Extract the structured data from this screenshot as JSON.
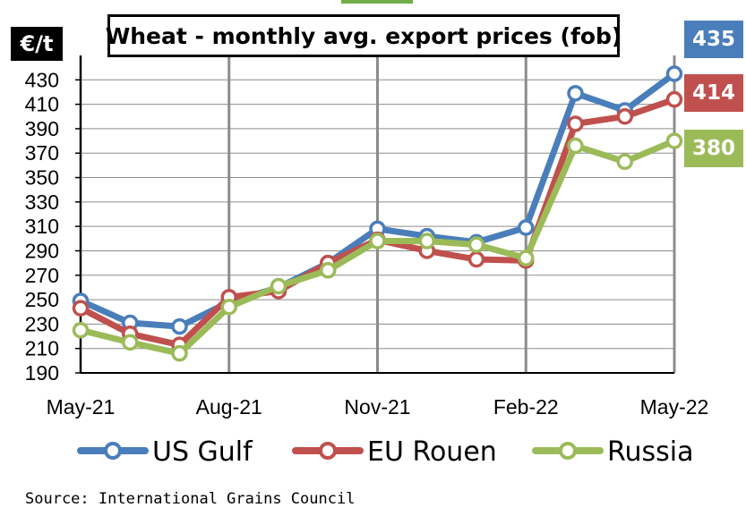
{
  "unit_label": "€/t",
  "source": "Source: International Grains Council",
  "chart_data": {
    "type": "line",
    "title": "Wheat - monthly avg. export prices (fob)",
    "ylabel": "€/t",
    "ylim": [
      190,
      450
    ],
    "yticks": [
      190,
      210,
      230,
      250,
      270,
      290,
      310,
      330,
      350,
      370,
      390,
      410,
      430
    ],
    "ytick_labels": [
      "190",
      "210",
      "230",
      "250",
      "270",
      "290",
      "310",
      "330",
      "350",
      "370",
      "390",
      "410",
      "430"
    ],
    "x_categories": [
      "May-21",
      "Jun-21",
      "Jul-21",
      "Aug-21",
      "Sep-21",
      "Oct-21",
      "Nov-21",
      "Dec-21",
      "Jan-22",
      "Feb-22",
      "Mar-22",
      "Apr-22",
      "May-22"
    ],
    "x_tick_labels": [
      "May-21",
      "Aug-21",
      "Nov-21",
      "Feb-22",
      "May-22"
    ],
    "grid": true,
    "legend_position": "bottom",
    "series": [
      {
        "name": "US Gulf",
        "color": "#4a7ebb",
        "values": [
          249,
          231,
          228,
          248,
          260,
          280,
          308,
          302,
          297,
          309,
          419,
          405,
          435
        ],
        "end_label": "435"
      },
      {
        "name": "EU Rouen",
        "color": "#c0504d",
        "values": [
          243,
          222,
          213,
          252,
          257,
          280,
          299,
          290,
          283,
          282,
          394,
          400,
          414
        ],
        "end_label": "414"
      },
      {
        "name": "Russia",
        "color": "#9bbb59",
        "values": [
          225,
          215,
          206,
          244,
          261,
          274,
          298,
          298,
          295,
          284,
          376,
          363,
          380
        ],
        "end_label": "380"
      }
    ]
  }
}
